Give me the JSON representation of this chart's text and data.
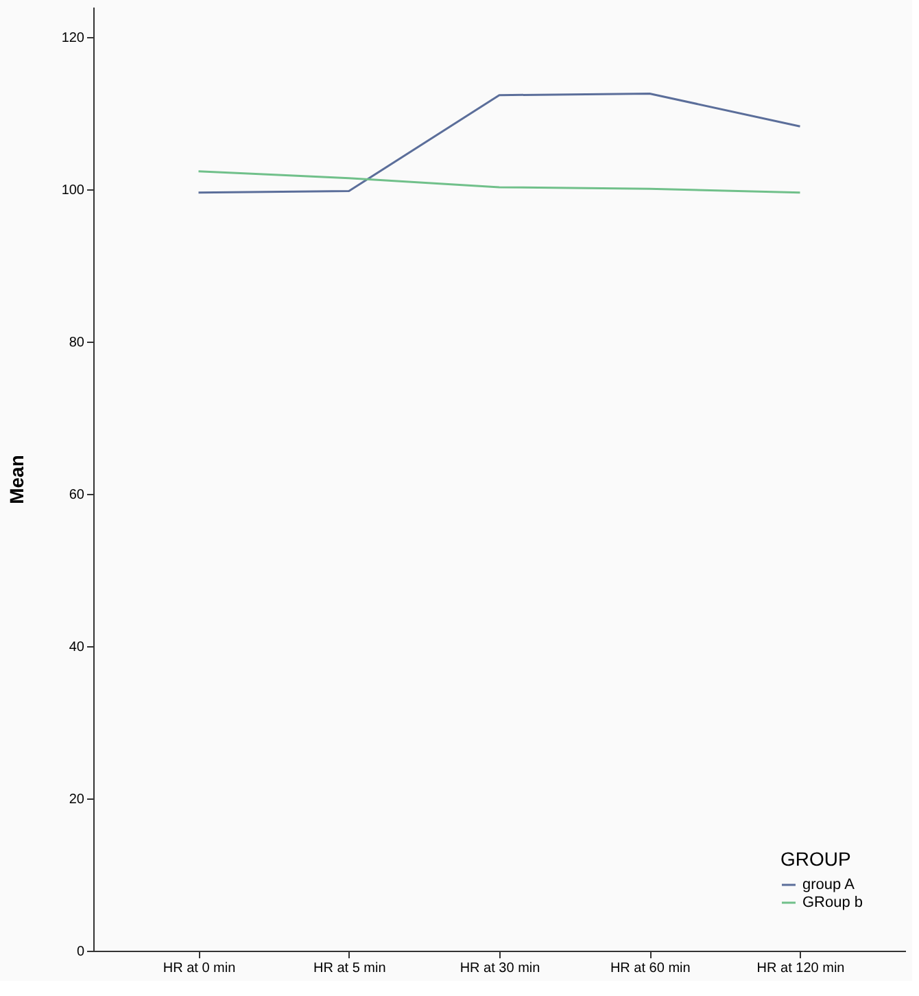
{
  "chart_data": {
    "type": "line",
    "ylabel": "Mean",
    "legend_title": "GROUP",
    "legend": "bottom right",
    "grid": false,
    "marker": "none",
    "line_style": "solid",
    "categories": [
      "HR at 0 min",
      "HR at 5 min",
      "HR at 30 min",
      "HR at 60 min",
      "HR at 120 min"
    ],
    "ylim": [
      0,
      124
    ],
    "yticks": [
      0,
      20,
      40,
      60,
      80,
      100,
      120
    ],
    "series": [
      {
        "name": "group A",
        "color": "#5b6e9a",
        "values": [
          99.6,
          99.8,
          112.4,
          112.6,
          108.3
        ]
      },
      {
        "name": "GRoup b",
        "color": "#70c08a",
        "values": [
          102.4,
          101.5,
          100.3,
          100.1,
          99.6
        ]
      }
    ]
  }
}
